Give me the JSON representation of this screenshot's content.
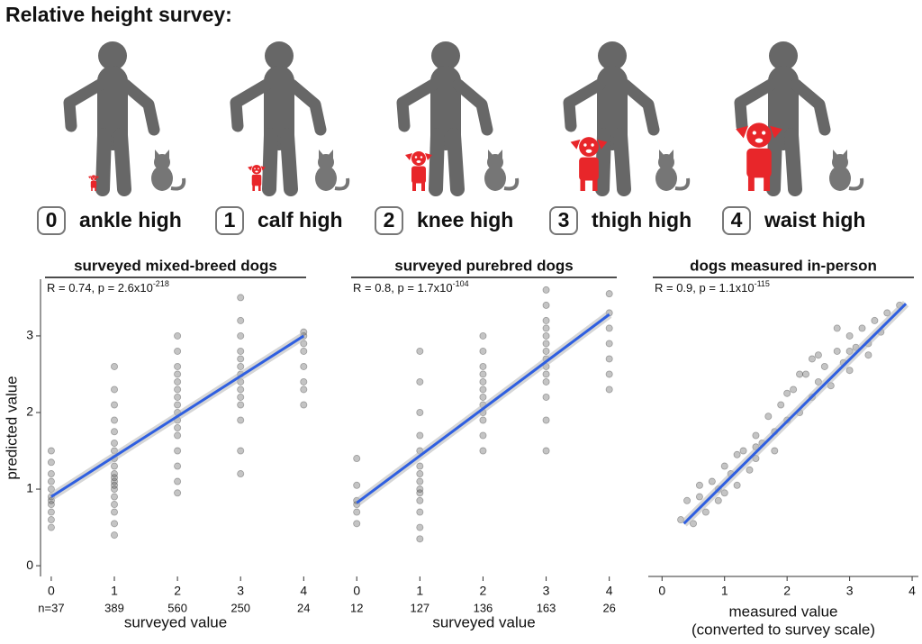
{
  "survey": {
    "title": "Relative height survey:",
    "levels": [
      {
        "number": "0",
        "label": "ankle high"
      },
      {
        "number": "1",
        "label": "calf high"
      },
      {
        "number": "2",
        "label": "knee high"
      },
      {
        "number": "3",
        "label": "thigh high"
      },
      {
        "number": "4",
        "label": "waist high"
      }
    ]
  },
  "chart_data": [
    {
      "type": "scatter",
      "title": "surveyed mixed-breed dogs",
      "annotation": "R = 0.74, p = 2.6x10",
      "annotation_exponent": "-218",
      "xlabel": "surveyed value",
      "ylabel": "predicted value",
      "count_labels": [
        "n=37",
        "389",
        "560",
        "250",
        "24"
      ],
      "xlim": [
        -0.17,
        4.11
      ],
      "ylim": [
        -0.14,
        3.74
      ],
      "xticks": [
        0,
        1,
        2,
        3,
        4
      ],
      "yticks": [
        0,
        1,
        2,
        3
      ],
      "color": "#555555",
      "x": [
        0,
        0,
        0,
        0,
        0,
        0,
        0,
        0,
        0,
        0,
        0,
        1,
        1,
        1,
        1,
        1,
        1,
        1,
        1,
        1,
        1,
        1,
        1,
        1,
        1,
        1,
        1,
        1,
        1,
        1,
        2,
        2,
        2,
        2,
        2,
        2,
        2,
        2,
        2,
        2,
        2,
        2,
        2,
        2,
        2,
        2,
        3,
        3,
        3,
        3,
        3,
        3,
        3,
        3,
        3,
        3,
        3,
        3,
        3,
        3,
        4,
        4,
        4,
        4,
        4,
        4,
        4,
        4
      ],
      "y": [
        0.5,
        0.6,
        0.7,
        0.8,
        0.85,
        0.9,
        1.0,
        1.1,
        1.2,
        1.35,
        1.5,
        0.4,
        0.55,
        0.7,
        0.8,
        0.9,
        1.0,
        1.05,
        1.1,
        1.15,
        1.2,
        1.3,
        1.4,
        1.5,
        1.6,
        1.75,
        1.9,
        2.1,
        2.3,
        2.6,
        0.95,
        1.1,
        1.3,
        1.5,
        1.7,
        1.8,
        1.9,
        2.0,
        2.1,
        2.2,
        2.3,
        2.4,
        2.5,
        2.6,
        2.8,
        3.0,
        1.2,
        1.5,
        1.9,
        2.1,
        2.2,
        2.3,
        2.4,
        2.5,
        2.6,
        2.7,
        2.8,
        3.0,
        3.2,
        3.5,
        2.1,
        2.3,
        2.4,
        2.6,
        2.8,
        2.9,
        3.0,
        3.05
      ],
      "fit": {
        "x": [
          0,
          4
        ],
        "y": [
          0.9,
          3.0
        ],
        "color": "#2f5fe0"
      }
    },
    {
      "type": "scatter",
      "title": "surveyed purebred dogs",
      "annotation": "R = 0.8, p = 1.7x10",
      "annotation_exponent": "-104",
      "xlabel": "surveyed value",
      "count_labels": [
        "12",
        "127",
        "136",
        "163",
        "26"
      ],
      "xlim": [
        -0.16,
        4.19
      ],
      "ylim": [
        -0.14,
        3.74
      ],
      "xticks": [
        0,
        1,
        2,
        3,
        4
      ],
      "color": "#555555",
      "x": [
        0,
        0,
        0,
        0,
        0,
        0,
        1,
        1,
        1,
        1,
        1,
        1,
        1,
        1,
        1,
        1,
        1,
        1,
        1,
        1,
        2,
        2,
        2,
        2,
        2,
        2,
        2,
        2,
        2,
        2,
        2,
        2,
        3,
        3,
        3,
        3,
        3,
        3,
        3,
        3,
        3,
        3,
        3,
        3,
        3,
        3,
        4,
        4,
        4,
        4,
        4,
        4,
        4
      ],
      "y": [
        0.55,
        0.7,
        0.8,
        0.85,
        1.05,
        1.4,
        0.35,
        0.5,
        0.7,
        0.85,
        0.95,
        1.0,
        1.1,
        1.2,
        1.3,
        1.5,
        1.7,
        2.0,
        2.4,
        2.8,
        1.5,
        1.7,
        1.9,
        2.0,
        2.1,
        2.2,
        2.3,
        2.4,
        2.5,
        2.6,
        2.8,
        3.0,
        1.5,
        1.9,
        2.2,
        2.4,
        2.5,
        2.6,
        2.7,
        2.8,
        2.9,
        3.0,
        3.1,
        3.2,
        3.4,
        3.6,
        2.3,
        2.5,
        2.7,
        2.9,
        3.1,
        3.3,
        3.55
      ],
      "fit": {
        "x": [
          0,
          4
        ],
        "y": [
          0.82,
          3.28
        ],
        "color": "#2f5fe0"
      }
    },
    {
      "type": "scatter",
      "title": "dogs measured in-person",
      "annotation": "R = 0.9, p = 1.1x10",
      "annotation_exponent": "-115",
      "xlabel": "measured value",
      "xlabel_note": "(converted to survey scale)",
      "x_axis_line": true,
      "xlim": [
        -0.22,
        4.1
      ],
      "ylim": [
        -0.14,
        3.74
      ],
      "xticks": [
        0,
        1,
        2,
        3,
        4
      ],
      "color": "#555555",
      "x": [
        0.3,
        0.4,
        0.5,
        0.6,
        0.7,
        0.8,
        0.9,
        1.0,
        1.0,
        1.1,
        1.2,
        1.3,
        1.4,
        1.5,
        1.5,
        1.6,
        1.7,
        1.8,
        1.9,
        2.0,
        2.0,
        2.1,
        2.2,
        2.3,
        2.4,
        2.5,
        2.5,
        2.6,
        2.7,
        2.8,
        2.9,
        3.0,
        3.0,
        3.1,
        3.2,
        3.3,
        3.4,
        3.5,
        3.6,
        3.8,
        0.6,
        1.2,
        1.8,
        2.4,
        3.0,
        1.5,
        2.2,
        2.8,
        3.3,
        0.9
      ],
      "y": [
        0.6,
        0.85,
        0.55,
        0.9,
        0.7,
        1.1,
        0.85,
        1.3,
        0.95,
        1.2,
        1.05,
        1.5,
        1.25,
        1.7,
        1.4,
        1.6,
        1.95,
        1.75,
        2.1,
        1.9,
        2.25,
        2.3,
        2.0,
        2.5,
        2.2,
        2.4,
        2.75,
        2.6,
        2.35,
        2.8,
        2.65,
        3.0,
        2.55,
        2.85,
        3.1,
        2.9,
        3.2,
        3.05,
        3.3,
        3.4,
        1.05,
        1.45,
        1.5,
        2.7,
        2.8,
        1.55,
        2.5,
        3.1,
        2.75,
        1.0
      ],
      "fit": {
        "x": [
          0.35,
          3.9
        ],
        "y": [
          0.55,
          3.42
        ],
        "color": "#2f5fe0"
      }
    }
  ]
}
